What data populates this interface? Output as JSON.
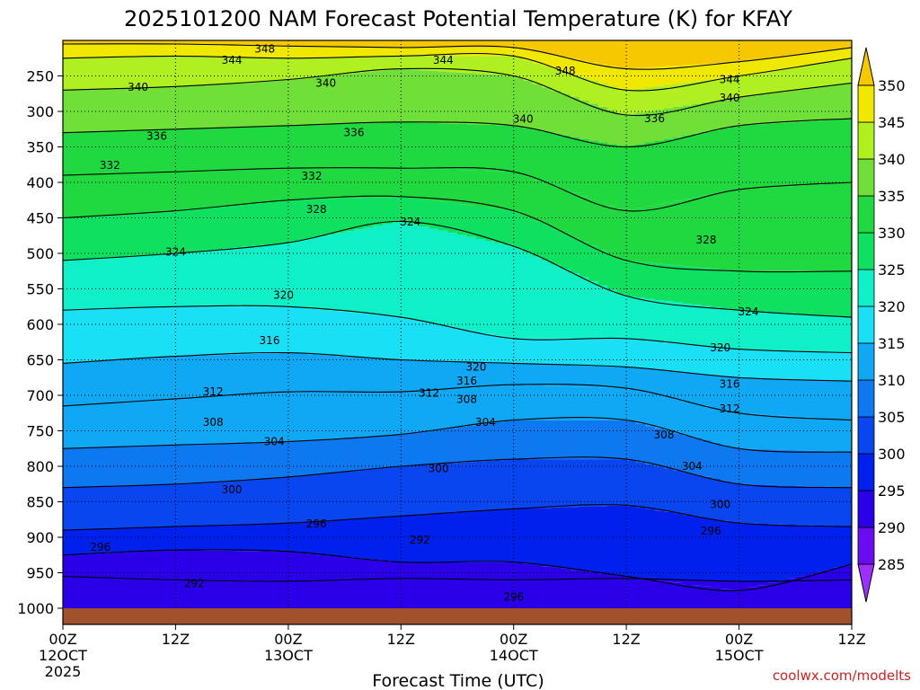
{
  "chart_data": {
    "type": "contour",
    "title": "2025101200 NAM Forecast Potential Temperature (K) for KFAY",
    "xlabel": "Forecast Time (UTC)",
    "ylabel": "",
    "credit": "coolwx.com/modelts",
    "x_ticks": [
      {
        "hours": 0,
        "lines": [
          "00Z",
          "12OCT",
          "2025"
        ]
      },
      {
        "hours": 12,
        "lines": [
          "12Z"
        ]
      },
      {
        "hours": 24,
        "lines": [
          "00Z",
          "13OCT"
        ]
      },
      {
        "hours": 36,
        "lines": [
          "12Z"
        ]
      },
      {
        "hours": 48,
        "lines": [
          "00Z",
          "14OCT"
        ]
      },
      {
        "hours": 60,
        "lines": [
          "12Z"
        ]
      },
      {
        "hours": 72,
        "lines": [
          "00Z",
          "15OCT"
        ]
      },
      {
        "hours": 84,
        "lines": [
          "12Z"
        ]
      }
    ],
    "y_ticks": [
      250,
      300,
      350,
      400,
      450,
      500,
      550,
      600,
      650,
      700,
      750,
      800,
      850,
      900,
      950,
      1000
    ],
    "y_range_hpa": [
      200,
      1000
    ],
    "x_range_hours": [
      0,
      84
    ],
    "surface_pressure_hpa": 1000,
    "surface_color": "#a0522d",
    "colorbar": {
      "ticks": [
        285,
        290,
        295,
        300,
        305,
        310,
        315,
        320,
        325,
        330,
        335,
        340,
        345,
        350
      ],
      "colors": [
        "#9b30ff",
        "#6a0cf0",
        "#2a00e8",
        "#0020ee",
        "#0a46f0",
        "#0d78f0",
        "#10a8f5",
        "#1ae0f5",
        "#10f0c8",
        "#10e060",
        "#20d840",
        "#70e038",
        "#b0f020",
        "#f0e800",
        "#f5c800"
      ]
    },
    "isentropes": [
      {
        "theta": 292,
        "pressures": [
          955,
          960,
          962,
          958,
          960,
          958,
          962,
          960
        ]
      },
      {
        "theta": 296,
        "pressures": [
          925,
          918,
          920,
          935,
          935,
          955,
          975,
          938
        ]
      },
      {
        "theta": 300,
        "pressures": [
          890,
          885,
          880,
          870,
          860,
          855,
          880,
          885
        ]
      },
      {
        "theta": 304,
        "pressures": [
          830,
          825,
          815,
          800,
          790,
          790,
          825,
          830
        ]
      },
      {
        "theta": 308,
        "pressures": [
          775,
          770,
          765,
          755,
          735,
          735,
          775,
          780
        ]
      },
      {
        "theta": 312,
        "pressures": [
          715,
          705,
          695,
          695,
          685,
          690,
          725,
          735
        ]
      },
      {
        "theta": 316,
        "pressures": [
          655,
          645,
          640,
          650,
          655,
          660,
          675,
          680
        ]
      },
      {
        "theta": 320,
        "pressures": [
          580,
          575,
          575,
          590,
          620,
          620,
          635,
          640
        ]
      },
      {
        "theta": 324,
        "pressures": [
          510,
          500,
          485,
          455,
          490,
          560,
          580,
          590
        ]
      },
      {
        "theta": 328,
        "pressures": [
          450,
          440,
          425,
          420,
          440,
          510,
          525,
          525
        ]
      },
      {
        "theta": 332,
        "pressures": [
          390,
          385,
          380,
          380,
          385,
          440,
          410,
          400
        ]
      },
      {
        "theta": 336,
        "pressures": [
          330,
          325,
          320,
          315,
          320,
          350,
          320,
          310
        ]
      },
      {
        "theta": 340,
        "pressures": [
          270,
          265,
          255,
          240,
          250,
          305,
          280,
          260
        ]
      },
      {
        "theta": 344,
        "pressures": [
          225,
          222,
          225,
          222,
          222,
          270,
          250,
          225
        ]
      },
      {
        "theta": 348,
        "pressures": [
          205,
          205,
          208,
          210,
          210,
          240,
          230,
          210
        ]
      }
    ],
    "contour_labels": [
      {
        "text": "348",
        "hours": 21.5,
        "hpa": 212
      },
      {
        "text": "344",
        "hours": 18,
        "hpa": 228
      },
      {
        "text": "344",
        "hours": 40.5,
        "hpa": 228
      },
      {
        "text": "348",
        "hours": 53.5,
        "hpa": 243
      },
      {
        "text": "344",
        "hours": 71,
        "hpa": 255
      },
      {
        "text": "340",
        "hours": 8,
        "hpa": 266
      },
      {
        "text": "340",
        "hours": 28,
        "hpa": 260
      },
      {
        "text": "340",
        "hours": 71,
        "hpa": 281
      },
      {
        "text": "340",
        "hours": 49,
        "hpa": 311
      },
      {
        "text": "336",
        "hours": 63,
        "hpa": 310
      },
      {
        "text": "336",
        "hours": 10,
        "hpa": 335
      },
      {
        "text": "336",
        "hours": 31,
        "hpa": 330
      },
      {
        "text": "332",
        "hours": 5,
        "hpa": 376
      },
      {
        "text": "332",
        "hours": 26.5,
        "hpa": 391
      },
      {
        "text": "328",
        "hours": 27,
        "hpa": 438
      },
      {
        "text": "324",
        "hours": 37,
        "hpa": 456
      },
      {
        "text": "328",
        "hours": 68.5,
        "hpa": 481
      },
      {
        "text": "324",
        "hours": 12,
        "hpa": 498
      },
      {
        "text": "320",
        "hours": 23.5,
        "hpa": 559
      },
      {
        "text": "324",
        "hours": 73,
        "hpa": 582
      },
      {
        "text": "316",
        "hours": 22,
        "hpa": 623
      },
      {
        "text": "320",
        "hours": 70,
        "hpa": 633
      },
      {
        "text": "320",
        "hours": 44,
        "hpa": 660
      },
      {
        "text": "316",
        "hours": 43,
        "hpa": 680
      },
      {
        "text": "316",
        "hours": 71,
        "hpa": 684
      },
      {
        "text": "312",
        "hours": 16,
        "hpa": 695
      },
      {
        "text": "312",
        "hours": 39,
        "hpa": 697
      },
      {
        "text": "308",
        "hours": 43,
        "hpa": 706
      },
      {
        "text": "312",
        "hours": 71,
        "hpa": 719
      },
      {
        "text": "308",
        "hours": 16,
        "hpa": 738
      },
      {
        "text": "304",
        "hours": 45,
        "hpa": 738
      },
      {
        "text": "304",
        "hours": 22.5,
        "hpa": 765
      },
      {
        "text": "308",
        "hours": 64,
        "hpa": 756
      },
      {
        "text": "304",
        "hours": 67,
        "hpa": 800
      },
      {
        "text": "300",
        "hours": 40,
        "hpa": 803
      },
      {
        "text": "300",
        "hours": 18,
        "hpa": 833
      },
      {
        "text": "300",
        "hours": 70,
        "hpa": 854
      },
      {
        "text": "296",
        "hours": 27,
        "hpa": 881
      },
      {
        "text": "296",
        "hours": 69,
        "hpa": 891
      },
      {
        "text": "292",
        "hours": 38,
        "hpa": 904
      },
      {
        "text": "296",
        "hours": 4,
        "hpa": 914
      },
      {
        "text": "292",
        "hours": 14,
        "hpa": 965
      },
      {
        "text": "296",
        "hours": 48,
        "hpa": 984
      }
    ]
  }
}
